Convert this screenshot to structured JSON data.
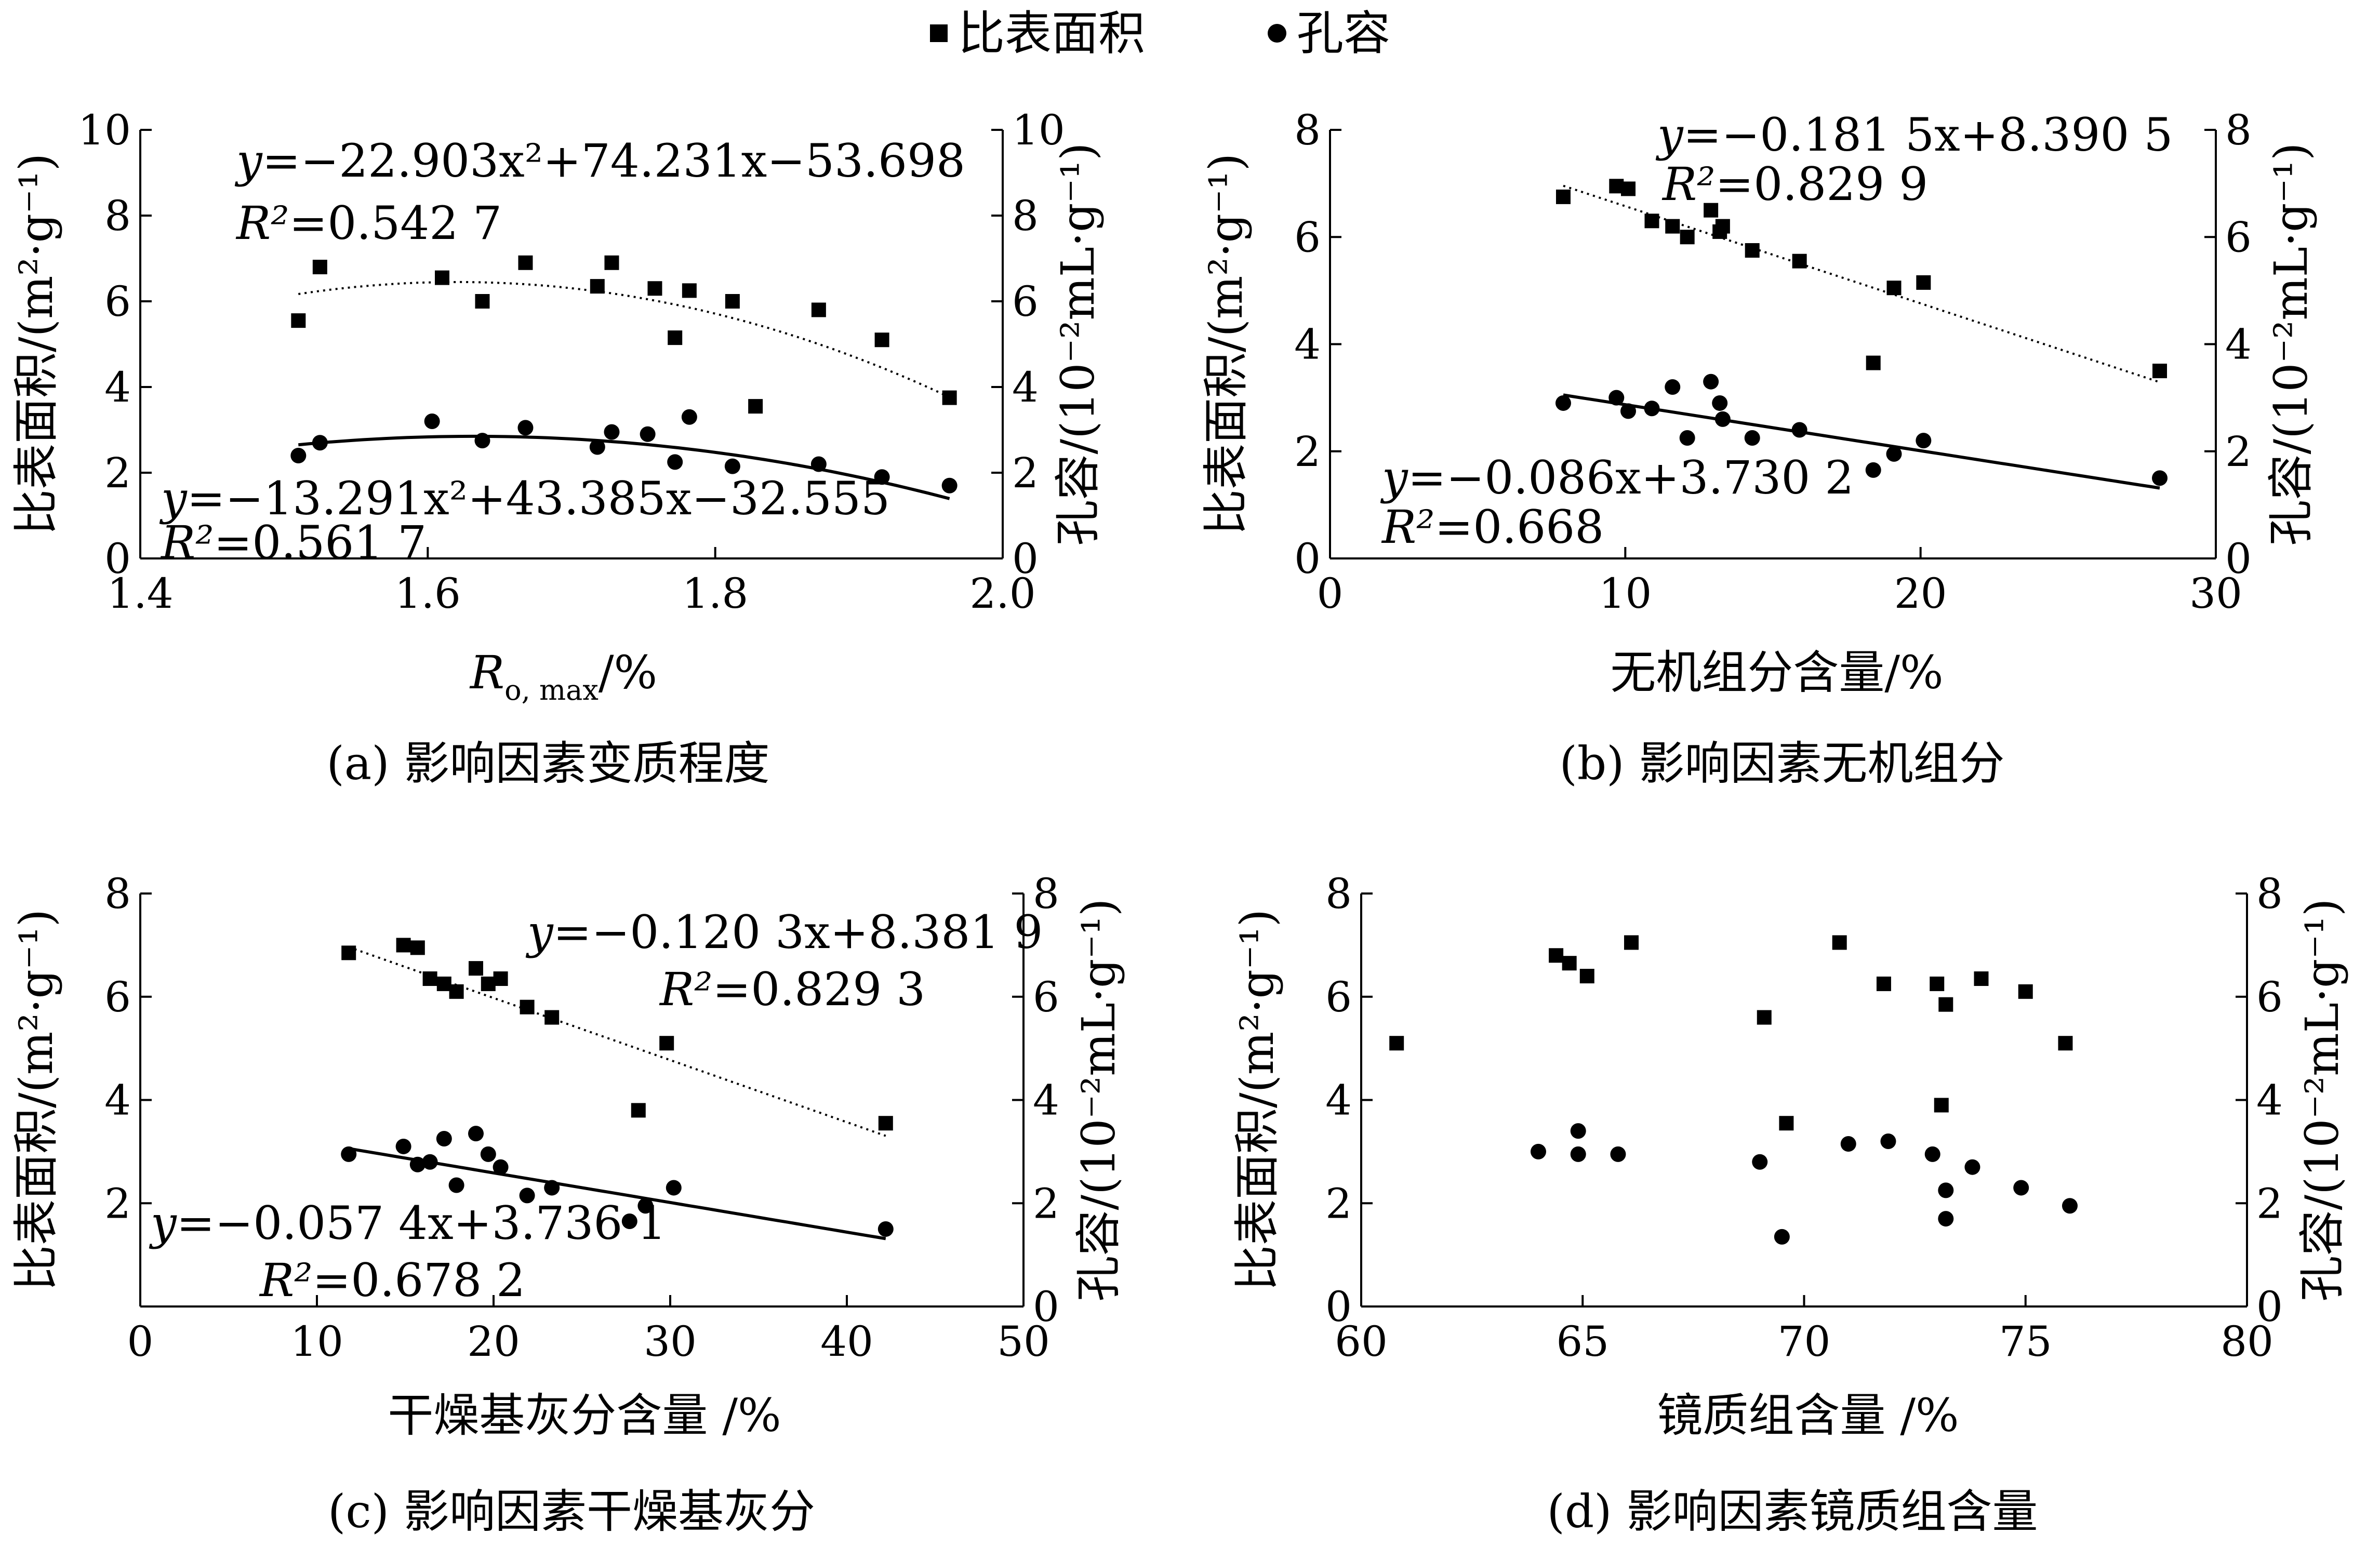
{
  "legend": {
    "surface_label": "比表面积",
    "pore_label": "孔容"
  },
  "chart_data": [
    {
      "id": "a",
      "type": "scatter",
      "caption": "(a)  影响因素变质程度",
      "xlabel_main": "R",
      "xlabel_sub": "o, max",
      "xlabel_suffix": "/%",
      "ylabel_left": "比表面积/(m²·g⁻¹)",
      "ylabel_right": "孔容/(10⁻²mL·g⁻¹)",
      "xlim": [
        1.4,
        2.0
      ],
      "ylim_left": [
        0,
        10
      ],
      "ylim_right": [
        0,
        10
      ],
      "xticks": [
        "1.4",
        "1.6",
        "1.8",
        "2.0"
      ],
      "xtick_values": [
        1.4,
        1.6,
        1.8,
        2.0
      ],
      "yticks_left": [
        "0",
        "2",
        "4",
        "6",
        "8",
        "10"
      ],
      "ytick_values_left": [
        0,
        2,
        4,
        6,
        8,
        10
      ],
      "yticks_right": [
        "0",
        "2",
        "4",
        "6",
        "8",
        "10"
      ],
      "ytick_values_right": [
        0,
        2,
        4,
        6,
        8,
        10
      ],
      "series": [
        {
          "name": "比表面积",
          "marker": "square",
          "x": [
            1.51,
            1.525,
            1.61,
            1.638,
            1.668,
            1.718,
            1.728,
            1.758,
            1.772,
            1.782,
            1.812,
            1.828,
            1.872,
            1.916,
            1.963
          ],
          "y": [
            5.55,
            6.8,
            6.55,
            6.0,
            6.9,
            6.35,
            6.9,
            6.3,
            5.15,
            6.25,
            6.0,
            3.55,
            5.8,
            5.1,
            3.75
          ],
          "fit": {
            "kind": "quadratic",
            "coef": [
              -22.903,
              74.231,
              -53.698
            ],
            "x_range": [
              1.51,
              1.963
            ],
            "style": "dotted"
          }
        },
        {
          "name": "孔容",
          "marker": "circle",
          "x": [
            1.51,
            1.525,
            1.603,
            1.638,
            1.668,
            1.718,
            1.728,
            1.753,
            1.772,
            1.782,
            1.812,
            1.872,
            1.916,
            1.963
          ],
          "y": [
            2.4,
            2.7,
            3.2,
            2.75,
            3.05,
            2.6,
            2.95,
            2.9,
            2.25,
            3.3,
            2.15,
            2.2,
            1.9,
            1.7
          ],
          "fit": {
            "kind": "quadratic",
            "coef": [
              -13.291,
              43.385,
              -32.555
            ],
            "x_range": [
              1.51,
              1.963
            ],
            "style": "solid"
          }
        }
      ],
      "annotations": [
        {
          "y_prefix": "y",
          "body": "=−22.903x²+74.231x−53.698"
        },
        {
          "r_prefix": "R²",
          "body": "=0.542 7"
        },
        {
          "y_prefix": "y",
          "body": "=−13.291x²+43.385x−32.555"
        },
        {
          "r_prefix": "R²",
          "body": "=0.561 7"
        }
      ]
    },
    {
      "id": "b",
      "type": "scatter",
      "caption": "(b)  影响因素无机组分",
      "xlabel": "无机组分含量/%",
      "ylabel_left": "比表面积/(m²·g⁻¹)",
      "ylabel_right": "孔容/(10⁻²mL·g⁻¹)",
      "xlim": [
        0,
        30
      ],
      "ylim_left": [
        0,
        8
      ],
      "ylim_right": [
        0,
        8
      ],
      "xticks": [
        "0",
        "10",
        "20",
        "30"
      ],
      "xtick_values": [
        0,
        10,
        20,
        30
      ],
      "yticks_left": [
        "0",
        "2",
        "4",
        "6",
        "8"
      ],
      "ytick_values_left": [
        0,
        2,
        4,
        6,
        8
      ],
      "yticks_right": [
        "0",
        "2",
        "4",
        "6",
        "8"
      ],
      "ytick_values_right": [
        0,
        2,
        4,
        6,
        8
      ],
      "series": [
        {
          "name": "比表面积",
          "marker": "square",
          "x": [
            7.9,
            9.7,
            10.1,
            10.9,
            11.6,
            12.1,
            12.9,
            13.2,
            13.3,
            14.3,
            15.9,
            18.4,
            19.1,
            20.1,
            28.1
          ],
          "y": [
            6.75,
            6.95,
            6.9,
            6.3,
            6.2,
            6.0,
            6.5,
            6.1,
            6.2,
            5.75,
            5.55,
            3.65,
            5.05,
            5.15,
            3.5
          ],
          "fit": {
            "kind": "linear",
            "coef": [
              -0.1815,
              8.3905
            ],
            "x_range": [
              7.9,
              28.1
            ],
            "style": "dotted"
          }
        },
        {
          "name": "孔容",
          "marker": "circle",
          "x": [
            7.9,
            9.7,
            10.1,
            10.9,
            11.6,
            12.1,
            12.9,
            13.2,
            13.3,
            14.3,
            15.9,
            18.4,
            19.1,
            20.1,
            28.1
          ],
          "y": [
            2.9,
            3.0,
            2.75,
            2.8,
            3.2,
            2.25,
            3.3,
            2.9,
            2.6,
            2.25,
            2.4,
            1.65,
            1.95,
            2.2,
            1.5
          ],
          "fit": {
            "kind": "linear",
            "coef": [
              -0.086,
              3.7302
            ],
            "x_range": [
              7.9,
              28.1
            ],
            "style": "solid"
          }
        }
      ],
      "annotations": [
        {
          "y_prefix": "y",
          "body": "=−0.181 5x+8.390 5"
        },
        {
          "r_prefix": "R²",
          "body": "=0.829 9"
        },
        {
          "y_prefix": "y",
          "body": "=−0.086x+3.730 2"
        },
        {
          "r_prefix": "R²",
          "body": "=0.668"
        }
      ]
    },
    {
      "id": "c",
      "type": "scatter",
      "caption": "(c)  影响因素干燥基灰分",
      "xlabel": "干燥基灰分含量 /%",
      "ylabel_left": "比表面积/(m²·g⁻¹)",
      "ylabel_right": "孔容/(10⁻²mL·g⁻¹)",
      "xlim": [
        0,
        50
      ],
      "ylim_left": [
        0,
        8
      ],
      "ylim_right": [
        0,
        8
      ],
      "xticks": [
        "0",
        "10",
        "20",
        "30",
        "40",
        "50"
      ],
      "xtick_values": [
        0,
        10,
        20,
        30,
        40,
        50
      ],
      "yticks_left": [
        "2",
        "4",
        "6",
        "8"
      ],
      "ytick_values_left": [
        2,
        4,
        6,
        8
      ],
      "yticks_right": [
        "0",
        "2",
        "4",
        "6",
        "8"
      ],
      "ytick_values_right": [
        0,
        2,
        4,
        6,
        8
      ],
      "series": [
        {
          "name": "比表面积",
          "marker": "square",
          "x": [
            11.8,
            14.9,
            15.7,
            16.4,
            17.2,
            17.9,
            19.0,
            19.7,
            20.4,
            21.9,
            23.3,
            28.2,
            29.8,
            42.2
          ],
          "y": [
            6.85,
            7.0,
            6.95,
            6.35,
            6.25,
            6.1,
            6.55,
            6.25,
            6.35,
            5.8,
            5.6,
            3.8,
            5.1,
            3.55
          ],
          "fit": {
            "kind": "linear",
            "coef": [
              -0.1203,
              8.3819
            ],
            "x_range": [
              11.8,
              42.2
            ],
            "style": "dotted"
          }
        },
        {
          "name": "孔容",
          "marker": "circle",
          "x": [
            11.8,
            14.9,
            15.7,
            16.4,
            17.2,
            17.9,
            19.0,
            19.7,
            20.4,
            21.9,
            23.3,
            27.7,
            28.6,
            30.2,
            42.2
          ],
          "y": [
            2.95,
            3.1,
            2.75,
            2.8,
            3.25,
            2.35,
            3.35,
            2.95,
            2.7,
            2.15,
            2.3,
            1.65,
            1.95,
            2.3,
            1.5
          ],
          "fit": {
            "kind": "linear",
            "coef": [
              -0.0574,
              3.7361
            ],
            "x_range": [
              11.8,
              42.2
            ],
            "style": "solid"
          }
        }
      ],
      "annotations": [
        {
          "y_prefix": "y",
          "body": "=−0.120 3x+8.381 9"
        },
        {
          "r_prefix": "R²",
          "body": "=0.829 3"
        },
        {
          "y_prefix": "y",
          "body": "=−0.057 4x+3.736 1"
        },
        {
          "r_prefix": "R²",
          "body": "=0.678 2"
        }
      ]
    },
    {
      "id": "d",
      "type": "scatter",
      "caption": "(d)  影响因素镜质组含量",
      "xlabel": "镜质组含量 /%",
      "ylabel_left": "比表面积/(m²·g⁻¹)",
      "ylabel_right": "孔容/(10⁻²mL·g⁻¹)",
      "xlim": [
        60,
        80
      ],
      "ylim_left": [
        0,
        8
      ],
      "ylim_right": [
        0,
        8
      ],
      "xticks": [
        "60",
        "65",
        "70",
        "75",
        "80"
      ],
      "xtick_values": [
        60,
        65,
        70,
        75,
        80
      ],
      "yticks_left": [
        "0",
        "2",
        "4",
        "6",
        "8"
      ],
      "ytick_values_left": [
        0,
        2,
        4,
        6,
        8
      ],
      "yticks_right": [
        "0",
        "2",
        "4",
        "6",
        "8"
      ],
      "ytick_values_right": [
        0,
        2,
        4,
        6,
        8
      ],
      "series": [
        {
          "name": "比表面积",
          "marker": "square",
          "x": [
            60.8,
            64.4,
            64.7,
            65.1,
            66.1,
            69.1,
            69.6,
            70.8,
            71.8,
            73.0,
            73.1,
            73.2,
            74.0,
            75.0,
            75.9
          ],
          "y": [
            5.1,
            6.8,
            6.65,
            6.4,
            7.05,
            5.6,
            3.55,
            7.05,
            6.25,
            6.25,
            3.9,
            5.85,
            6.35,
            6.1,
            5.1
          ],
          "fit": null
        },
        {
          "name": "孔容",
          "marker": "circle",
          "x": [
            64.0,
            64.9,
            64.9,
            65.8,
            69.0,
            69.5,
            71.0,
            71.9,
            72.9,
            73.2,
            73.2,
            73.8,
            74.9,
            76.0
          ],
          "y": [
            3.0,
            3.4,
            2.95,
            2.95,
            2.8,
            1.35,
            3.15,
            3.2,
            2.95,
            1.7,
            2.25,
            2.7,
            2.3,
            1.95
          ],
          "fit": null
        }
      ],
      "annotations": []
    }
  ]
}
